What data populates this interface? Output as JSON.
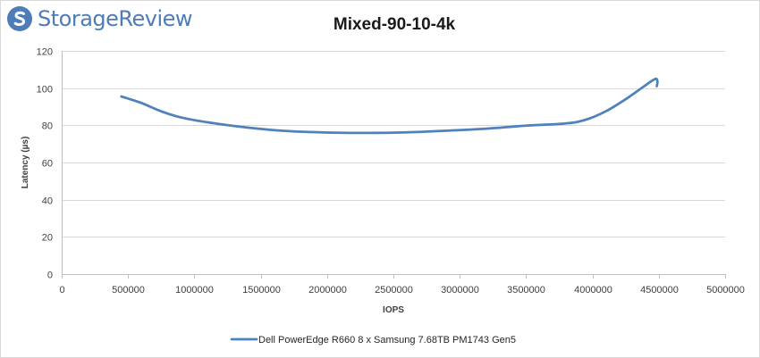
{
  "brand": {
    "name": "StorageReview",
    "icon": "storagereview-logo-icon",
    "color": "#4d7cb8"
  },
  "chart_data": {
    "type": "line",
    "title": "Mixed-90-10-4k",
    "xlabel": "IOPS",
    "ylabel": "Latency (µs)",
    "xlim": [
      0,
      5000000
    ],
    "ylim": [
      0,
      120
    ],
    "x_ticks": [
      0,
      500000,
      1000000,
      1500000,
      2000000,
      2500000,
      3000000,
      3500000,
      4000000,
      4500000,
      5000000
    ],
    "y_ticks": [
      0,
      20,
      40,
      60,
      80,
      100,
      120
    ],
    "grid": "horizontal",
    "legend_position": "bottom",
    "series": [
      {
        "name": "Dell PowerEdge R660 8 x Samsung 7.68TB PM1743 Gen5",
        "color": "#4f81bd",
        "x": [
          450000,
          600000,
          750000,
          900000,
          1100000,
          1400000,
          1700000,
          2000000,
          2300000,
          2600000,
          2900000,
          3200000,
          3500000,
          3800000,
          3950000,
          4100000,
          4250000,
          4380000,
          4450000,
          4480000,
          4490000,
          4485000
        ],
        "y": [
          95.5,
          92.0,
          87.5,
          84.2,
          81.6,
          78.8,
          76.9,
          76.1,
          75.9,
          76.2,
          77.1,
          78.2,
          79.8,
          81.0,
          83.0,
          87.5,
          94.0,
          100.5,
          104.0,
          105.0,
          103.5,
          101.0
        ]
      }
    ]
  }
}
